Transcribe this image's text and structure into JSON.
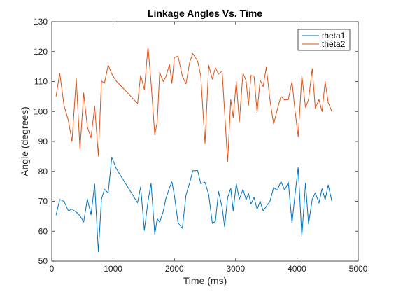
{
  "chart_data": {
    "type": "line",
    "title": "Linkage Angles Vs. Time",
    "xlabel": "Time (ms)",
    "ylabel": "Angle (degrees)",
    "xlim": [
      0,
      5000
    ],
    "ylim": [
      50,
      130
    ],
    "xticks": [
      0,
      1000,
      2000,
      3000,
      4000,
      5000
    ],
    "yticks": [
      50,
      60,
      70,
      80,
      90,
      100,
      110,
      120,
      130
    ],
    "grid": false,
    "legend_position": "top-right",
    "series": [
      {
        "name": "theta1",
        "color": "#0072BD",
        "x": [
          70,
          130,
          200,
          270,
          330,
          400,
          460,
          520,
          580,
          640,
          700,
          760,
          810,
          860,
          920,
          980,
          1050,
          1400,
          1450,
          1510,
          1570,
          1620,
          1680,
          1720,
          1760,
          1820,
          1860,
          1920,
          1960,
          2000,
          2060,
          2130,
          2190,
          2250,
          2300,
          2380,
          2430,
          2500,
          2560,
          2620,
          2670,
          2720,
          2780,
          2820,
          2870,
          2920,
          2960,
          3010,
          3060,
          3120,
          3170,
          3210,
          3250,
          3300,
          3350,
          3400,
          3450,
          3500,
          3560,
          3620,
          3680,
          3740,
          3800,
          3860,
          3920,
          3970,
          4020,
          4080,
          4140,
          4190,
          4250,
          4300,
          4360,
          4410,
          4460,
          4510,
          4570
        ],
        "y": [
          65.4,
          70.6,
          70.0,
          66.8,
          67.4,
          66.4,
          65.2,
          63.1,
          70.8,
          65.5,
          75.8,
          53.1,
          70.7,
          74.0,
          72.8,
          84.8,
          81.0,
          69.5,
          74.8,
          60.3,
          70.0,
          76.0,
          59.0,
          64.2,
          63.0,
          66.7,
          70.8,
          74.5,
          76.5,
          72.0,
          62.8,
          61.0,
          72.0,
          76.2,
          80.2,
          80.3,
          75.9,
          76.4,
          72.2,
          62.6,
          63.3,
          73.3,
          68.0,
          61.5,
          71.3,
          74.3,
          66.8,
          75.9,
          70.7,
          74.0,
          70.5,
          72.6,
          69.1,
          71.3,
          67.3,
          70.0,
          66.8,
          68.3,
          70.0,
          74.6,
          73.7,
          76.7,
          73.7,
          76.4,
          62.7,
          72.5,
          81.3,
          58.2,
          76.1,
          62.4,
          70.7,
          72.8,
          69.4,
          74.2,
          70.5,
          75.5,
          70.0
        ]
      },
      {
        "name": "theta2",
        "color": "#D95319",
        "x": [
          70,
          130,
          200,
          270,
          330,
          400,
          460,
          520,
          580,
          640,
          700,
          760,
          810,
          860,
          920,
          980,
          1050,
          1400,
          1450,
          1510,
          1570,
          1620,
          1680,
          1720,
          1760,
          1820,
          1860,
          1920,
          1960,
          2000,
          2060,
          2130,
          2190,
          2250,
          2300,
          2380,
          2430,
          2500,
          2560,
          2620,
          2670,
          2720,
          2780,
          2820,
          2870,
          2920,
          2960,
          3010,
          3060,
          3120,
          3170,
          3210,
          3250,
          3300,
          3350,
          3400,
          3450,
          3500,
          3560,
          3620,
          3680,
          3740,
          3800,
          3860,
          3920,
          3970,
          4020,
          4080,
          4140,
          4190,
          4250,
          4300,
          4360,
          4410,
          4460,
          4510,
          4570
        ],
        "y": [
          105.0,
          112.8,
          102.0,
          97.0,
          90.0,
          111.0,
          87.4,
          106.2,
          94.9,
          91.2,
          101.8,
          85.1,
          110.2,
          109.4,
          115.5,
          112.5,
          110.2,
          102.7,
          112.1,
          107.3,
          121.7,
          109.5,
          92.2,
          96.5,
          113.0,
          110.0,
          111.5,
          115.7,
          109.4,
          118.0,
          118.5,
          111.8,
          109.2,
          116.5,
          119.3,
          116.8,
          112.0,
          89.3,
          115.4,
          110.8,
          114.6,
          112.5,
          113.5,
          100.0,
          83.1,
          104.0,
          98.0,
          110.0,
          96.6,
          112.8,
          110.3,
          102.0,
          112.0,
          111.8,
          99.7,
          110.5,
          108.3,
          114.8,
          103.8,
          95.8,
          100.7,
          105.1,
          103.8,
          104.0,
          110.0,
          100.0,
          91.6,
          112.0,
          101.4,
          104.0,
          114.3,
          101.0,
          104.0,
          100.0,
          110.0,
          103.0,
          100.0
        ]
      }
    ]
  }
}
